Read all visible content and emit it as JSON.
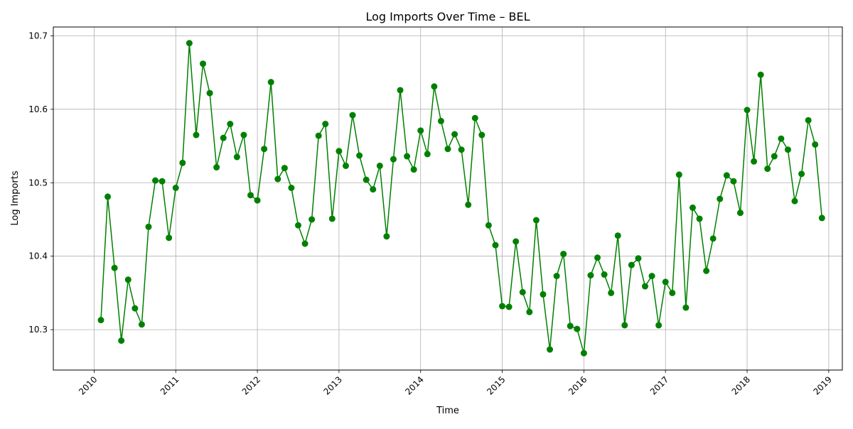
{
  "chart_data": {
    "type": "line",
    "title": "Log Imports Over Time – BEL",
    "xlabel": "Time",
    "ylabel": "Log Imports",
    "x_start": "2010-01",
    "x_step": "monthly",
    "xlim": [
      "2009-07",
      "2019-03"
    ],
    "ylim": [
      10.245,
      10.712
    ],
    "x_ticks": [
      "2010",
      "2011",
      "2012",
      "2013",
      "2014",
      "2015",
      "2016",
      "2017",
      "2018",
      "2019"
    ],
    "y_ticks": [
      "10.3",
      "10.4",
      "10.5",
      "10.6",
      "10.7"
    ],
    "grid": true,
    "colors": {
      "series": "#008000"
    },
    "series": [
      {
        "values": [
          10.313,
          10.481,
          10.384,
          10.285,
          10.368,
          10.329,
          10.307,
          10.44,
          10.503,
          10.502,
          10.425,
          10.493,
          10.527,
          10.69,
          10.565,
          10.662,
          10.622,
          10.521,
          10.561,
          10.58,
          10.535,
          10.565,
          10.483,
          10.476,
          10.546,
          10.637,
          10.505,
          10.52,
          10.493,
          10.442,
          10.417,
          10.45,
          10.564,
          10.58,
          10.451,
          10.543,
          10.523,
          10.592,
          10.537,
          10.504,
          10.491,
          10.523,
          10.427,
          10.532,
          10.626,
          10.536,
          10.518,
          10.571,
          10.539,
          10.631,
          10.584,
          10.546,
          10.566,
          10.545,
          10.47,
          10.588,
          10.565,
          10.442,
          10.415,
          10.332,
          10.331,
          10.42,
          10.351,
          10.324,
          10.449,
          10.348,
          10.273,
          10.373,
          10.403,
          10.305,
          10.301,
          10.268,
          10.374,
          10.398,
          10.375,
          10.35,
          10.428,
          10.306,
          10.388,
          10.397,
          10.359,
          10.373,
          10.306,
          10.365,
          10.35,
          10.511,
          10.33,
          10.466,
          10.451,
          10.38,
          10.424,
          10.478,
          10.51,
          10.502,
          10.459,
          10.599,
          10.529,
          10.647,
          10.519,
          10.536,
          10.56,
          10.545,
          10.475,
          10.512,
          10.585,
          10.552,
          10.452
        ]
      }
    ]
  }
}
